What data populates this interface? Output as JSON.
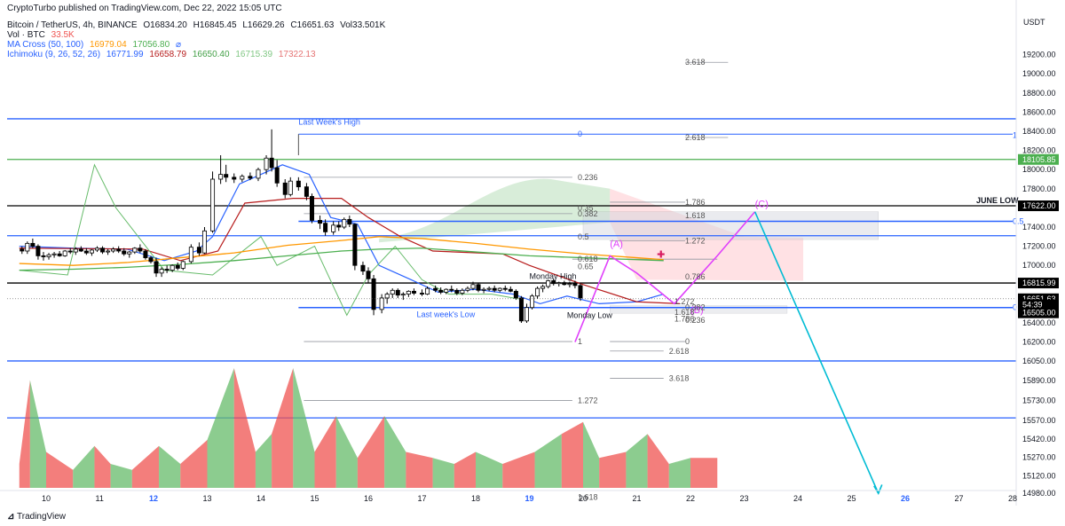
{
  "header": {
    "published": "CryptoTurbo published on TradingView.com, Dec 22, 2022 15:05 UTC",
    "symbol": "Bitcoin / TetherUS, 4h, BINANCE",
    "ohlc": {
      "o": "O16834.20",
      "h": "H16845.45",
      "l": "L16629.26",
      "c": "C16651.63",
      "vol": "Vol33.501K"
    },
    "vol_label": "Vol · BTC",
    "vol_value": "33.5K",
    "ma_label": "MA Cross (50, 100)",
    "ma_v1": "16979.04",
    "ma_v2": "17056.80",
    "ichi_label": "Ichimoku (9, 26, 52, 26)",
    "ichi_v1": "16771.99",
    "ichi_v2": "16658.79",
    "ichi_v3": "16650.40",
    "ichi_v4": "16715.39",
    "ichi_v5": "17322.13"
  },
  "footer": {
    "brand": "TradingView"
  },
  "colors": {
    "up": "#ffffff",
    "down": "#000000",
    "blue": "#2962ff",
    "green": "#4caf50",
    "black": "#000000",
    "magenta": "#e040fb",
    "cyan": "#00bcd4",
    "orange": "#ff9800",
    "red": "#b71c1c",
    "cloud_green": "#c8e6c9",
    "cloud_red": "#ffcdd2",
    "vol_up": "#66bb6a",
    "vol_down": "#ef5350"
  },
  "chart_data": {
    "type": "candlestick",
    "currency": "USDT",
    "y_ticks": [
      "19200.00",
      "19000.00",
      "18800.00",
      "18600.00",
      "18400.00",
      "18200.00",
      "18000.00",
      "17800.00",
      "17600.00",
      "17400.00",
      "17200.00",
      "17000.00",
      "16800.00",
      "16600.00",
      "16400.00",
      "16200.00",
      "16050.00",
      "15890.00",
      "15730.00",
      "15570.00",
      "15420.00",
      "15270.00",
      "15120.00",
      "14980.00"
    ],
    "x_ticks": [
      "10",
      "11",
      "12",
      "13",
      "14",
      "15",
      "16",
      "17",
      "18",
      "19",
      "20",
      "21",
      "22",
      "23",
      "24",
      "25",
      "26",
      "27",
      "28"
    ],
    "price_tags": [
      {
        "label": "18105.85",
        "price": 18105.85,
        "bg": "#4caf50",
        "fg": "#ffffff"
      },
      {
        "label": "17622.00",
        "price": 17622,
        "bg": "#000000",
        "fg": "#ffffff"
      },
      {
        "label": "16815.99",
        "price": 16815.99,
        "bg": "#000000",
        "fg": "#ffffff"
      },
      {
        "label": "16651.63",
        "price": 16651.63,
        "bg": "#000000",
        "fg": "#ffffff"
      },
      {
        "label": "54:39",
        "price": 16590,
        "bg": "#000000",
        "fg": "#ffffff"
      },
      {
        "label": "16505.00",
        "price": 16505,
        "bg": "#000000",
        "fg": "#ffffff"
      }
    ],
    "hlines": [
      {
        "price": 18530,
        "color": "#2962ff"
      },
      {
        "price": 18105.85,
        "color": "#4caf50"
      },
      {
        "price": 17622,
        "color": "#000000"
      },
      {
        "price": 17310,
        "color": "#2962ff"
      },
      {
        "price": 16815.99,
        "color": "#000000"
      },
      {
        "price": 16050,
        "color": "#2962ff",
        "semi": true
      },
      {
        "price": 15590,
        "color": "#2962ff",
        "semi": true
      }
    ],
    "labels": [
      {
        "text": "Last Week's High",
        "x": 14.7,
        "price": 18470,
        "color": "#2962ff"
      },
      {
        "text": "Last week's Low",
        "x": 16.9,
        "price": 16460,
        "color": "#2962ff"
      },
      {
        "text": "Monday High",
        "x": 19.0,
        "price": 16860,
        "color": "#131722"
      },
      {
        "text": "Monday Low",
        "x": 19.7,
        "price": 16450,
        "color": "#131722"
      },
      {
        "text": "JUNE LOW",
        "x": 28.0,
        "price": 17650,
        "color": "#131722",
        "bold": true
      },
      {
        "text": "(A)",
        "x": 20.5,
        "price": 17190,
        "color": "#e040fb"
      },
      {
        "text": "(B)",
        "x": 22.0,
        "price": 16500,
        "color": "#e040fb"
      },
      {
        "text": "(C)",
        "x": 23.2,
        "price": 17610,
        "color": "#e040fb"
      }
    ],
    "fib_blue": [
      {
        "text": "1",
        "x": 28.0,
        "price": 18360
      },
      {
        "text": "0.5",
        "x": 28.0,
        "price": 17460
      },
      {
        "text": "0",
        "x": 28.0,
        "price": 16560
      },
      {
        "text": "0",
        "x": 19.9,
        "price": 18370
      }
    ],
    "fib_gray": [
      {
        "text": "3.618",
        "x": 21.9,
        "price": 19120
      },
      {
        "text": "2.618",
        "x": 21.9,
        "price": 18335
      },
      {
        "text": "0.236",
        "x": 19.9,
        "price": 17920
      },
      {
        "text": "1.786",
        "x": 21.9,
        "price": 17660
      },
      {
        "text": "0.35",
        "x": 19.9,
        "price": 17600
      },
      {
        "text": "0.382",
        "x": 19.9,
        "price": 17540
      },
      {
        "text": "1.618",
        "x": 21.9,
        "price": 17520
      },
      {
        "text": "1.272",
        "x": 21.9,
        "price": 17255
      },
      {
        "text": "0.5",
        "x": 19.9,
        "price": 17300
      },
      {
        "text": "0.618",
        "x": 19.9,
        "price": 17065
      },
      {
        "text": "0.65",
        "x": 19.9,
        "price": 16990
      },
      {
        "text": "0.786",
        "x": 21.9,
        "price": 16880
      },
      {
        "text": "1.272",
        "x": 21.7,
        "price": 16620
      },
      {
        "text": "0.382",
        "x": 21.9,
        "price": 16560
      },
      {
        "text": "1.618",
        "x": 21.7,
        "price": 16510
      },
      {
        "text": "0.236",
        "x": 21.9,
        "price": 16430
      },
      {
        "text": "1.786",
        "x": 21.7,
        "price": 16440
      },
      {
        "text": "1",
        "x": 19.9,
        "price": 16205
      },
      {
        "text": "0",
        "x": 21.9,
        "price": 16205
      },
      {
        "text": "2.618",
        "x": 21.6,
        "price": 16130
      },
      {
        "text": "3.618",
        "x": 21.6,
        "price": 15910
      },
      {
        "text": "1.272",
        "x": 19.9,
        "price": 15730
      },
      {
        "text": "1.618",
        "x": 19.9,
        "price": 14950
      }
    ],
    "candles": [
      [
        9.55,
        17170,
        17200,
        17120,
        17150
      ],
      [
        9.65,
        17150,
        17250,
        17120,
        17230
      ],
      [
        9.75,
        17230,
        17280,
        17180,
        17200
      ],
      [
        9.85,
        17200,
        17220,
        17060,
        17100
      ],
      [
        9.95,
        17100,
        17140,
        17050,
        17090
      ],
      [
        10.05,
        17090,
        17130,
        17060,
        17110
      ],
      [
        10.15,
        17110,
        17140,
        17080,
        17120
      ],
      [
        10.25,
        17120,
        17150,
        17090,
        17100
      ],
      [
        10.35,
        17100,
        17160,
        17090,
        17150
      ],
      [
        10.45,
        17150,
        17180,
        17120,
        17140
      ],
      [
        10.55,
        17140,
        17190,
        17110,
        17170
      ],
      [
        10.65,
        17170,
        17200,
        17140,
        17150
      ],
      [
        10.75,
        17150,
        17180,
        17110,
        17130
      ],
      [
        10.85,
        17130,
        17170,
        17100,
        17160
      ],
      [
        10.95,
        17160,
        17200,
        17140,
        17180
      ],
      [
        11.05,
        17180,
        17200,
        17120,
        17140
      ],
      [
        11.15,
        17140,
        17170,
        17110,
        17150
      ],
      [
        11.25,
        17150,
        17190,
        17130,
        17170
      ],
      [
        11.35,
        17170,
        17200,
        17130,
        17150
      ],
      [
        11.45,
        17150,
        17180,
        17100,
        17120
      ],
      [
        11.55,
        17120,
        17150,
        17080,
        17140
      ],
      [
        11.65,
        17140,
        17190,
        17120,
        17180
      ],
      [
        11.75,
        17180,
        17220,
        17130,
        17150
      ],
      [
        11.85,
        17150,
        17170,
        17060,
        17080
      ],
      [
        11.95,
        17080,
        17100,
        17020,
        17040
      ],
      [
        12.05,
        17040,
        17080,
        16880,
        16920
      ],
      [
        12.15,
        16920,
        16980,
        16880,
        16960
      ],
      [
        12.25,
        16960,
        17000,
        16920,
        16950
      ],
      [
        12.35,
        16950,
        17010,
        16930,
        17000
      ],
      [
        12.45,
        17000,
        17030,
        16950,
        16970
      ],
      [
        12.55,
        16970,
        17050,
        16950,
        17040
      ],
      [
        12.7,
        17040,
        17220,
        17020,
        17190
      ],
      [
        12.85,
        17190,
        17240,
        17100,
        17130
      ],
      [
        12.95,
        17130,
        17400,
        17120,
        17360
      ],
      [
        13.1,
        17360,
        17980,
        17340,
        17900
      ],
      [
        13.25,
        17900,
        18150,
        17850,
        17950
      ],
      [
        13.35,
        17950,
        18050,
        17870,
        17920
      ],
      [
        13.5,
        17920,
        17960,
        17860,
        17900
      ],
      [
        13.65,
        17900,
        17950,
        17870,
        17930
      ],
      [
        13.8,
        17930,
        17970,
        17890,
        17910
      ],
      [
        13.95,
        17910,
        18020,
        17880,
        18000
      ],
      [
        14.1,
        18000,
        18150,
        17950,
        18120
      ],
      [
        14.2,
        18120,
        18420,
        17980,
        18020
      ],
      [
        14.3,
        18020,
        18100,
        17820,
        17860
      ],
      [
        14.45,
        17860,
        17900,
        17700,
        17740
      ],
      [
        14.55,
        17740,
        17920,
        17720,
        17880
      ],
      [
        14.7,
        17880,
        17920,
        17780,
        17820
      ],
      [
        14.85,
        17820,
        17860,
        17680,
        17720
      ],
      [
        14.95,
        17720,
        17750,
        17440,
        17470
      ],
      [
        15.1,
        17470,
        17520,
        17380,
        17440
      ],
      [
        15.2,
        17440,
        17480,
        17310,
        17350
      ],
      [
        15.35,
        17350,
        17460,
        17320,
        17420
      ],
      [
        15.45,
        17420,
        17460,
        17360,
        17400
      ],
      [
        15.55,
        17400,
        17500,
        17380,
        17480
      ],
      [
        15.65,
        17480,
        17520,
        17400,
        17430
      ],
      [
        15.75,
        17430,
        17440,
        16950,
        17000
      ],
      [
        15.9,
        17000,
        17040,
        16900,
        16940
      ],
      [
        16.0,
        16940,
        16980,
        16820,
        16860
      ],
      [
        16.1,
        16860,
        16900,
        16480,
        16540
      ],
      [
        16.25,
        16540,
        16700,
        16500,
        16660
      ],
      [
        16.35,
        16660,
        16720,
        16600,
        16700
      ],
      [
        16.45,
        16700,
        16760,
        16660,
        16740
      ],
      [
        16.55,
        16740,
        16760,
        16660,
        16690
      ],
      [
        16.65,
        16690,
        16720,
        16640,
        16700
      ],
      [
        16.75,
        16700,
        16740,
        16670,
        16730
      ],
      [
        16.85,
        16730,
        16760,
        16690,
        16710
      ],
      [
        17.0,
        16710,
        16750,
        16680,
        16700
      ],
      [
        17.1,
        16700,
        16780,
        16690,
        16760
      ],
      [
        17.25,
        16760,
        16790,
        16720,
        16740
      ],
      [
        17.35,
        16740,
        16770,
        16700,
        16720
      ],
      [
        17.45,
        16720,
        16760,
        16700,
        16750
      ],
      [
        17.55,
        16750,
        16790,
        16720,
        16740
      ],
      [
        17.65,
        16740,
        16760,
        16690,
        16710
      ],
      [
        17.75,
        16710,
        16760,
        16690,
        16740
      ],
      [
        17.85,
        16740,
        16780,
        16720,
        16760
      ],
      [
        17.95,
        16760,
        16830,
        16740,
        16800
      ],
      [
        18.05,
        16800,
        16820,
        16720,
        16740
      ],
      [
        18.15,
        16740,
        16770,
        16710,
        16750
      ],
      [
        18.25,
        16750,
        16780,
        16730,
        16760
      ],
      [
        18.35,
        16760,
        16790,
        16720,
        16740
      ],
      [
        18.45,
        16740,
        16770,
        16720,
        16760
      ],
      [
        18.55,
        16760,
        16790,
        16730,
        16750
      ],
      [
        18.65,
        16750,
        16780,
        16720,
        16730
      ],
      [
        18.75,
        16730,
        16750,
        16640,
        16660
      ],
      [
        18.85,
        16660,
        16680,
        16400,
        16420
      ],
      [
        18.95,
        16420,
        16600,
        16400,
        16560
      ],
      [
        19.05,
        16560,
        16700,
        16540,
        16680
      ],
      [
        19.15,
        16680,
        16780,
        16650,
        16760
      ],
      [
        19.25,
        16760,
        16800,
        16720,
        16780
      ],
      [
        19.35,
        16780,
        16850,
        16760,
        16840
      ],
      [
        19.45,
        16840,
        16860,
        16790,
        16810
      ],
      [
        19.55,
        16810,
        16830,
        16780,
        16820
      ],
      [
        19.65,
        16820,
        16840,
        16790,
        16800
      ],
      [
        19.75,
        16800,
        16830,
        16770,
        16810
      ],
      [
        19.85,
        16810,
        16840,
        16760,
        16790
      ],
      [
        19.95,
        16790,
        16820,
        16630,
        16660
      ]
    ],
    "volume_scale_max": 100
  }
}
